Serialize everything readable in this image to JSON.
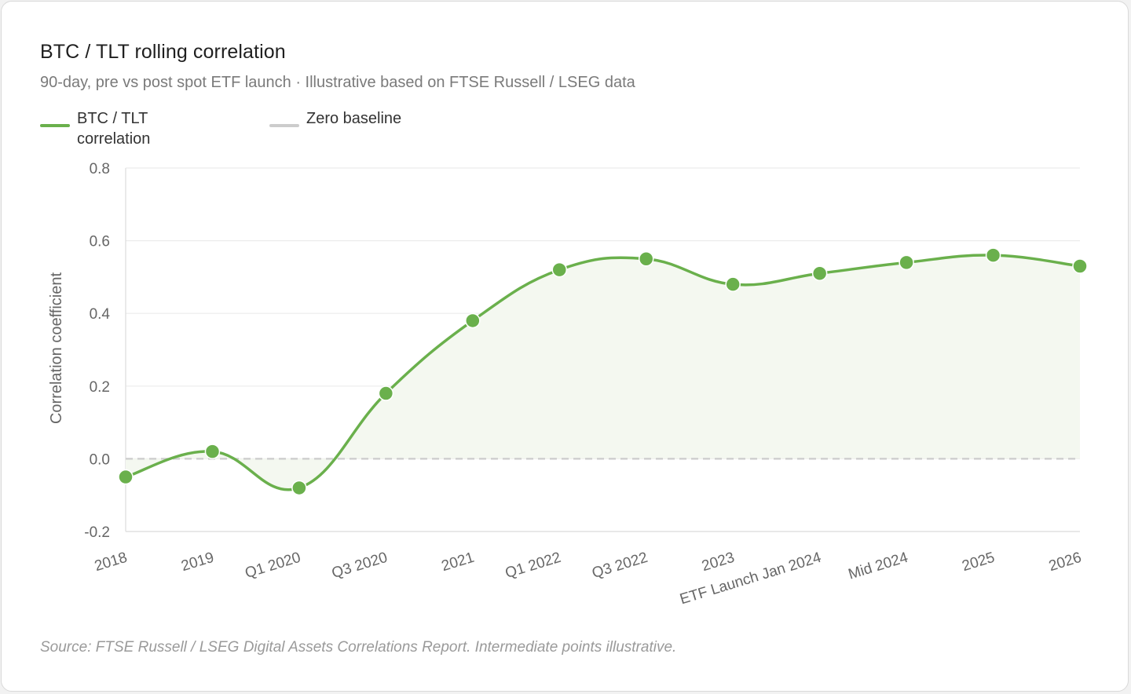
{
  "title": "BTC / TLT rolling correlation",
  "subtitle": "90-day, pre vs post spot ETF launch · Illustrative based on FTSE Russell / LSEG data",
  "source": "Source: FTSE Russell / LSEG Digital Assets Correlations Report. Intermediate points illustrative.",
  "colors": {
    "series": "#6ab04c",
    "fill": "#f4f8f0",
    "baseline": "#cccccc",
    "grid": "#ececec"
  },
  "legend": [
    {
      "label": "BTC / TLT correlation",
      "color": "#6ab04c",
      "style": "solid"
    },
    {
      "label": "Zero baseline",
      "color": "#cccccc",
      "style": "dashed"
    }
  ],
  "chart_data": {
    "type": "line",
    "title": "BTC / TLT rolling correlation",
    "subtitle": "90-day, pre vs post spot ETF launch · Illustrative based on FTSE Russell / LSEG data",
    "xlabel": "",
    "ylabel": "Correlation coefficient",
    "ylim": [
      -0.2,
      0.8
    ],
    "yticks": [
      "0.8",
      "0.6",
      "0.4",
      "0.2",
      "0.0",
      "-0.2"
    ],
    "ytick_values": [
      0.8,
      0.6,
      0.4,
      0.2,
      0.0,
      -0.2
    ],
    "categories": [
      "2018",
      "2019",
      "Q1 2020",
      "Q3 2020",
      "2021",
      "Q1 2022",
      "Q3 2022",
      "2023",
      "ETF Launch Jan 2024",
      "Mid 2024",
      "2025",
      "2026"
    ],
    "series": [
      {
        "name": "BTC / TLT correlation",
        "values": [
          -0.05,
          0.02,
          -0.08,
          0.18,
          0.38,
          0.52,
          0.55,
          0.48,
          0.51,
          0.54,
          0.56,
          0.53
        ]
      },
      {
        "name": "Zero baseline",
        "values": [
          0,
          0,
          0,
          0,
          0,
          0,
          0,
          0,
          0,
          0,
          0,
          0
        ]
      }
    ],
    "grid": true,
    "legend_position": "top-left",
    "smooth": true,
    "fill_under": true
  }
}
